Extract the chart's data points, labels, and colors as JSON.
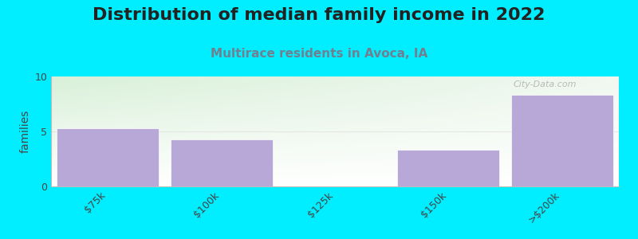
{
  "title": "Distribution of median family income in 2022",
  "subtitle": "Multirace residents in Avoca, IA",
  "categories": [
    "$75k",
    "$100k",
    "$125k",
    "$150k",
    ">$200k"
  ],
  "values": [
    5.3,
    4.3,
    0,
    3.3,
    8.3
  ],
  "bar_color": "#b8a8d8",
  "bar_edge_color": "#ffffff",
  "ylabel": "families",
  "ylim": [
    0,
    10
  ],
  "yticks": [
    0,
    5,
    10
  ],
  "background_color": "#00eeff",
  "plot_bg_top_left": "#d8f0d8",
  "plot_bg_top_right": "#f0f8f0",
  "plot_bg_bottom": "#ffffff",
  "title_fontsize": 16,
  "subtitle_fontsize": 11,
  "subtitle_color": "#708090",
  "watermark": "City-Data.com"
}
